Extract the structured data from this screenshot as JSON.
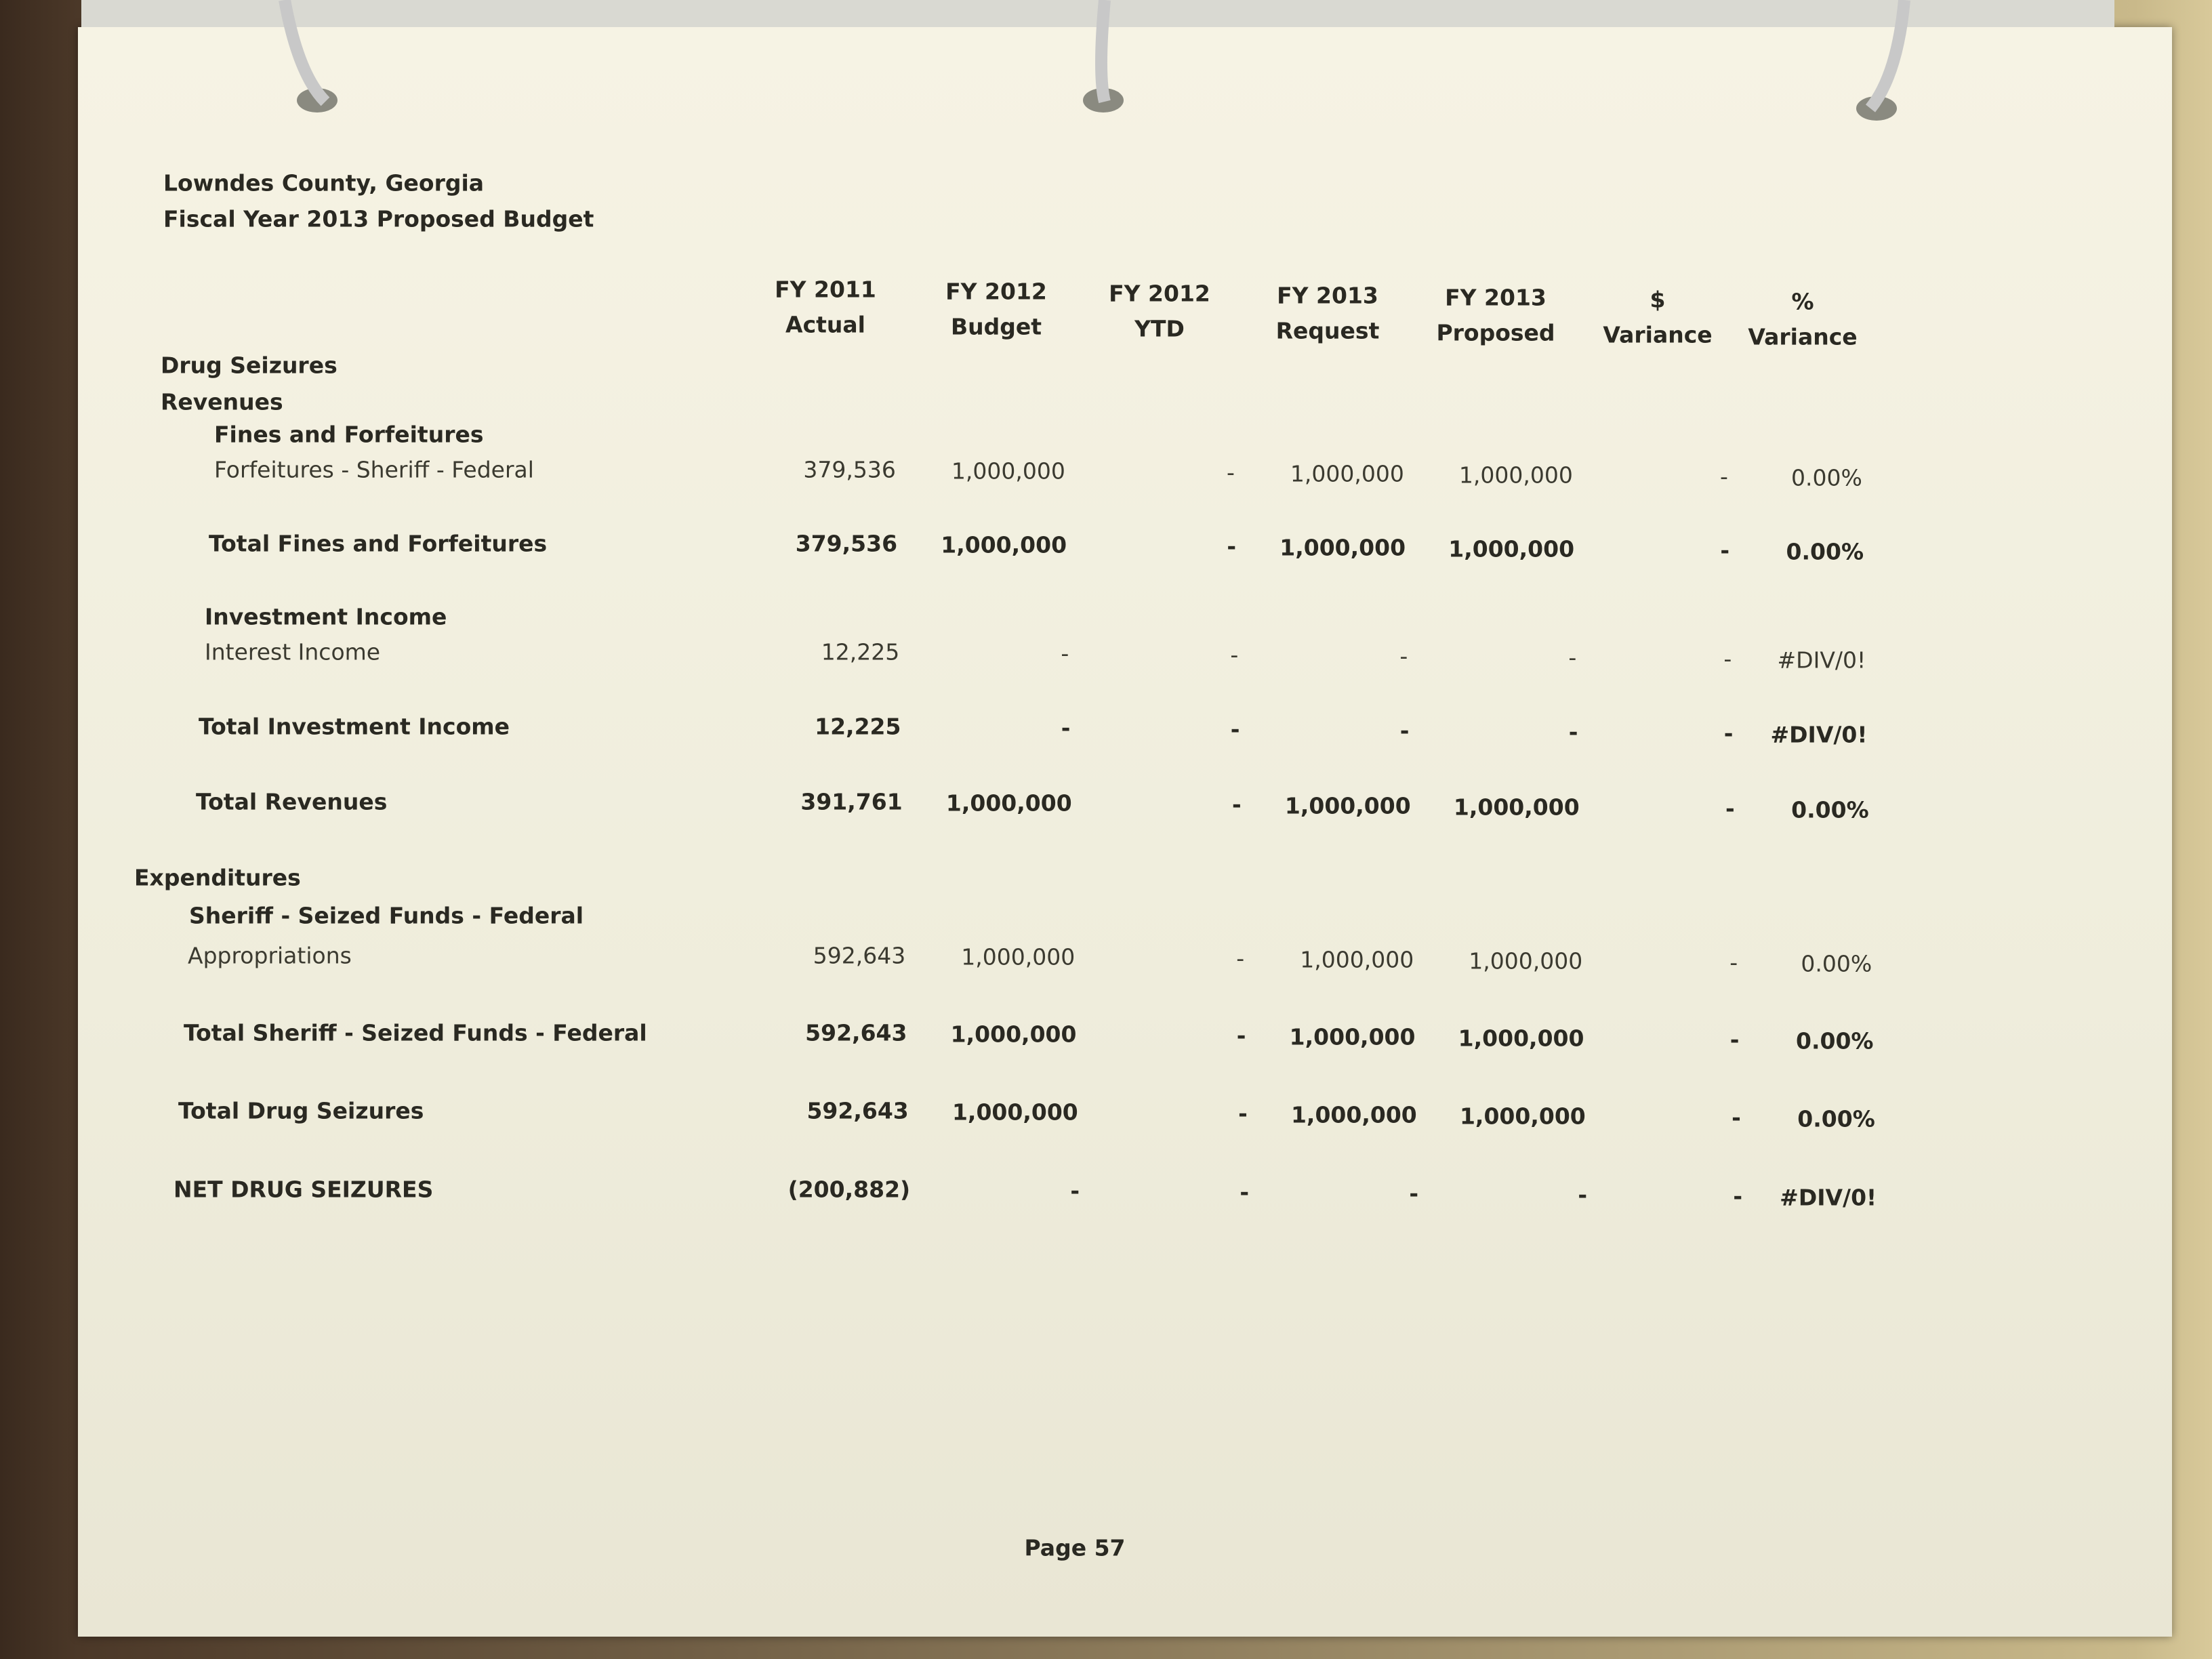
{
  "header": {
    "lines": [
      "Lowndes County, Georgia",
      "Fiscal Year 2013 Proposed Budget"
    ]
  },
  "table": {
    "columns": [
      [
        "FY 2011",
        "Actual"
      ],
      [
        "FY 2012",
        "Budget"
      ],
      [
        "FY 2012",
        "YTD"
      ],
      [
        "FY 2013",
        "Request"
      ],
      [
        "FY 2013",
        "Proposed"
      ],
      [
        "$",
        "Variance"
      ],
      [
        "%",
        "Variance"
      ]
    ],
    "rows": [
      {
        "label": "Drug Seizures"
      },
      {
        "label": "Revenues"
      },
      {
        "label": "Fines and Forfeitures"
      },
      {
        "label": "Forfeitures - Sheriff - Federal",
        "cells": [
          "379,536",
          "1,000,000",
          "-",
          "1,000,000",
          "1,000,000",
          "-",
          "0.00%"
        ]
      },
      {
        "label": "Total Fines and Forfeitures",
        "cells": [
          "379,536",
          "1,000,000",
          "-",
          "1,000,000",
          "1,000,000",
          "-",
          "0.00%"
        ]
      },
      {
        "label": "Investment Income"
      },
      {
        "label": "Interest Income",
        "cells": [
          "12,225",
          "-",
          "-",
          "-",
          "-",
          "-",
          "#DIV/0!"
        ]
      },
      {
        "label": "Total Investment Income",
        "cells": [
          "12,225",
          "-",
          "-",
          "-",
          "-",
          "-",
          "#DIV/0!"
        ]
      },
      {
        "label": "Total Revenues",
        "cells": [
          "391,761",
          "1,000,000",
          "-",
          "1,000,000",
          "1,000,000",
          "-",
          "0.00%"
        ]
      },
      {
        "label": "Expenditures"
      },
      {
        "label": "Sheriff - Seized Funds - Federal"
      },
      {
        "label": "Appropriations",
        "cells": [
          "592,643",
          "1,000,000",
          "-",
          "1,000,000",
          "1,000,000",
          "-",
          "0.00%"
        ]
      },
      {
        "label": "Total Sheriff - Seized Funds - Federal",
        "cells": [
          "592,643",
          "1,000,000",
          "-",
          "1,000,000",
          "1,000,000",
          "-",
          "0.00%"
        ]
      },
      {
        "label": "Total Drug Seizures",
        "cells": [
          "592,643",
          "1,000,000",
          "-",
          "1,000,000",
          "1,000,000",
          "-",
          "0.00%"
        ]
      },
      {
        "label": "NET DRUG SEIZURES",
        "cells": [
          "(200,882)",
          "-",
          "-",
          "-",
          "-",
          "-",
          "#DIV/0!"
        ]
      }
    ]
  },
  "footer": {
    "page": "Page 57"
  }
}
